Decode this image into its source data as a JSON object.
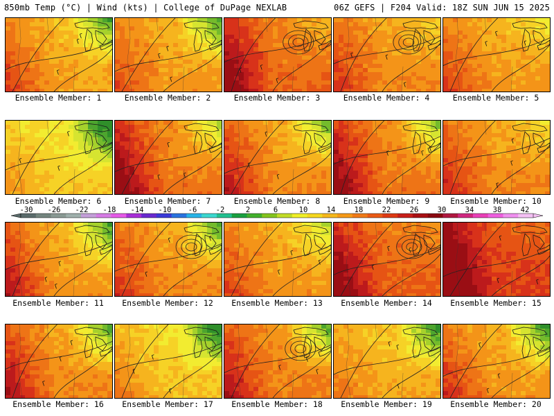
{
  "header": {
    "left": "850mb Temp (°C) | Wind (kts) | College of DuPage NEXLAB",
    "right": "06Z GEFS | F204 Valid: 18Z SUN JUN 15 2025"
  },
  "members": [
    {
      "label": "Ensemble Member: 1",
      "temp_bias": 0.0,
      "cool_ne": 0.8,
      "warm_w": 0.6,
      "low_center": false
    },
    {
      "label": "Ensemble Member: 2",
      "temp_bias": 0.1,
      "cool_ne": 0.9,
      "warm_w": 0.4,
      "low_center": false
    },
    {
      "label": "Ensemble Member: 3",
      "temp_bias": 0.5,
      "cool_ne": 0.2,
      "warm_w": 0.9,
      "low_center": true
    },
    {
      "label": "Ensemble Member: 4",
      "temp_bias": 0.2,
      "cool_ne": 0.2,
      "warm_w": 0.5,
      "low_center": true
    },
    {
      "label": "Ensemble Member: 5",
      "temp_bias": 0.1,
      "cool_ne": 0.3,
      "warm_w": 0.5,
      "low_center": false
    },
    {
      "label": "Ensemble Member: 6",
      "temp_bias": -0.4,
      "cool_ne": 1.0,
      "warm_w": 0.3,
      "low_center": false
    },
    {
      "label": "Ensemble Member: 7",
      "temp_bias": 0.4,
      "cool_ne": 0.7,
      "warm_w": 1.0,
      "low_center": false
    },
    {
      "label": "Ensemble Member: 8",
      "temp_bias": 0.2,
      "cool_ne": 0.8,
      "warm_w": 0.7,
      "low_center": false
    },
    {
      "label": "Ensemble Member: 9",
      "temp_bias": 0.4,
      "cool_ne": 0.8,
      "warm_w": 0.9,
      "low_center": false
    },
    {
      "label": "Ensemble Member: 10",
      "temp_bias": 0.2,
      "cool_ne": 0.3,
      "warm_w": 0.6,
      "low_center": false
    },
    {
      "label": "Ensemble Member: 11",
      "temp_bias": 0.1,
      "cool_ne": 0.9,
      "warm_w": 0.8,
      "low_center": false
    },
    {
      "label": "Ensemble Member: 12",
      "temp_bias": 0.2,
      "cool_ne": 0.9,
      "warm_w": 0.5,
      "low_center": true
    },
    {
      "label": "Ensemble Member: 13",
      "temp_bias": 0.1,
      "cool_ne": 0.5,
      "warm_w": 0.5,
      "low_center": false
    },
    {
      "label": "Ensemble Member: 14",
      "temp_bias": 0.6,
      "cool_ne": 0.1,
      "warm_w": 0.8,
      "low_center": true
    },
    {
      "label": "Ensemble Member: 15",
      "temp_bias": 0.9,
      "cool_ne": 0.1,
      "warm_w": 1.0,
      "low_center": false
    },
    {
      "label": "Ensemble Member: 16",
      "temp_bias": 0.2,
      "cool_ne": 0.9,
      "warm_w": 0.8,
      "low_center": false
    },
    {
      "label": "Ensemble Member: 17",
      "temp_bias": -0.3,
      "cool_ne": 1.0,
      "warm_w": 0.4,
      "low_center": false
    },
    {
      "label": "Ensemble Member: 18",
      "temp_bias": 0.3,
      "cool_ne": 0.9,
      "warm_w": 0.7,
      "low_center": true
    },
    {
      "label": "Ensemble Member: 19",
      "temp_bias": -0.1,
      "cool_ne": 0.9,
      "warm_w": 0.3,
      "low_center": false
    },
    {
      "label": "Ensemble Member: 20",
      "temp_bias": 0.1,
      "cool_ne": 1.0,
      "warm_w": 0.6,
      "low_center": false
    }
  ],
  "colorbar": {
    "labels": [
      "-30",
      "-26",
      "-22",
      "-18",
      "-14",
      "-10",
      "-6",
      "-2",
      "2",
      "6",
      "10",
      "14",
      "18",
      "22",
      "26",
      "30",
      "34",
      "38",
      "42"
    ],
    "colors": [
      "#5a6b6b",
      "#74857f",
      "#8a9a94",
      "#9fb0ac",
      "#c49fd9",
      "#d77ce6",
      "#e65be8",
      "#a82fd8",
      "#6a2ad0",
      "#3a3ad8",
      "#2a74e0",
      "#28b4e8",
      "#3cd8d0",
      "#22c090",
      "#1aa040",
      "#42b02c",
      "#84c41e",
      "#c2dc28",
      "#f0f028",
      "#f6d820",
      "#f6b81c",
      "#f69a18",
      "#f07a18",
      "#ea5a16",
      "#de3a14",
      "#c8201a",
      "#a81014",
      "#8a0a10",
      "#b01840",
      "#d02880",
      "#ea40b8",
      "#f060e0",
      "#f090f0",
      "#f4c0f4"
    ]
  }
}
